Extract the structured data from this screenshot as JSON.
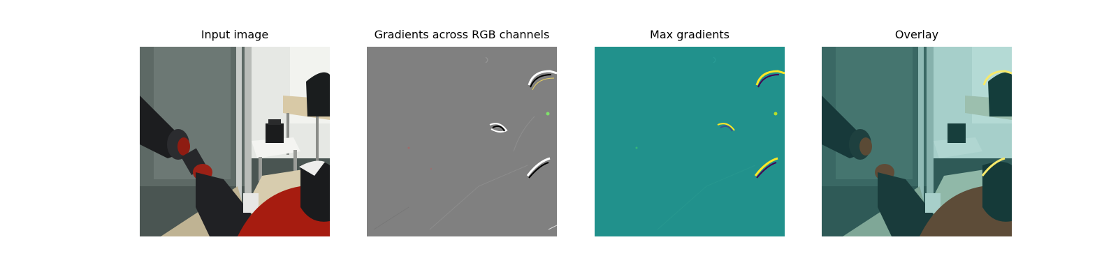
{
  "figure": {
    "panels": [
      {
        "title": "Input image"
      },
      {
        "title": "Gradients across RGB channels"
      },
      {
        "title": "Max gradients"
      },
      {
        "title": "Overlay"
      }
    ]
  },
  "colors": {
    "gradient_gray": "#808080",
    "max_gradient_teal": "#21918c",
    "overlay_tint": "#21918c"
  }
}
